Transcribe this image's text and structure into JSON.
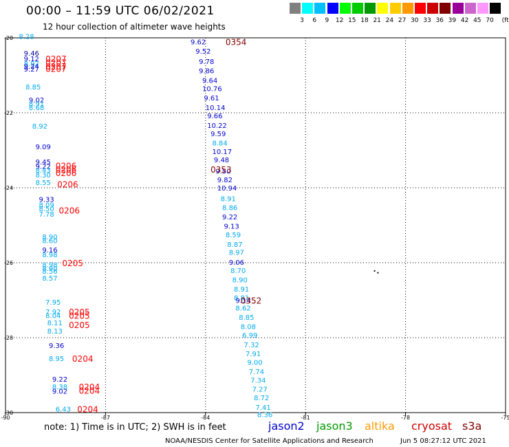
{
  "header": {
    "title": "00:00 – 11:59 UTC 06/02/2021",
    "subtitle": "12 hour collection of altimeter wave heights"
  },
  "colorbar": {
    "unit": "(ft)",
    "colors": [
      "#808080",
      "#00ffff",
      "#00bfff",
      "#0000ff",
      "#00ff00",
      "#00cc00",
      "#009900",
      "#ffff00",
      "#ffcc00",
      "#ff9900",
      "#ff0000",
      "#cc0000",
      "#800000",
      "#990099",
      "#cc66cc",
      "#ff99ff",
      "#000000"
    ],
    "labels": [
      "3",
      "6",
      "9",
      "12",
      "15",
      "18",
      "21",
      "24",
      "27",
      "30",
      "33",
      "36",
      "39",
      "42",
      "45",
      "70"
    ]
  },
  "footer": {
    "note": "note: 1) Time is in UTC; 2) SWH is in feet",
    "satellites": [
      {
        "name": "jason2",
        "color": "#0000cc"
      },
      {
        "name": "jason3",
        "color": "#009900"
      },
      {
        "name": "altika",
        "color": "#ff9900"
      },
      {
        "name": "cryosat",
        "color": "#cc0000"
      },
      {
        "name": "s3a",
        "color": "#800000"
      }
    ],
    "credit": "NOAA/NESDIS Center for Satellite Applications and Research",
    "timestamp": "Jun  5 08:27:12 UTC 2021"
  },
  "chart_data": {
    "type": "scatter",
    "title": "00:00 – 11:59 UTC 06/02/2021",
    "subtitle": "12 hour collection of altimeter wave heights",
    "xlabel": "",
    "ylabel": "",
    "xlim": [
      -90,
      -75
    ],
    "ylim": [
      -30,
      -20
    ],
    "xticks": [
      "-90",
      "-87",
      "-84",
      "-81",
      "-78",
      "-75"
    ],
    "yticks": [
      "-20",
      "-22",
      "-24",
      "-26",
      "-28",
      "-30"
    ],
    "grid": true,
    "swh_units": "ft",
    "tracks": [
      {
        "color": "#0000cc",
        "time_labels": [
          {
            "text": "0207",
            "lon": -88.8,
            "lat": -20.55,
            "color": "#ff0000"
          },
          {
            "text": "0207",
            "lon": -88.8,
            "lat": -20.65,
            "color": "#ff0000"
          },
          {
            "text": "0207",
            "lon": -88.8,
            "lat": -20.75,
            "color": "#ff0000"
          },
          {
            "text": "0207",
            "lon": -88.8,
            "lat": -20.82,
            "color": "#ff0000"
          },
          {
            "text": "0206",
            "lon": -88.5,
            "lat": -23.4,
            "color": "#ff0000"
          },
          {
            "text": "0206",
            "lon": -88.5,
            "lat": -23.5,
            "color": "#ff0000"
          },
          {
            "text": "0206",
            "lon": -88.5,
            "lat": -23.6,
            "color": "#ff0000"
          },
          {
            "text": "0206",
            "lon": -88.45,
            "lat": -23.9,
            "color": "#ff0000"
          },
          {
            "text": "0206",
            "lon": -88.4,
            "lat": -24.6,
            "color": "#ff0000"
          },
          {
            "text": "0205",
            "lon": -88.3,
            "lat": -26.0,
            "color": "#ff0000"
          },
          {
            "text": "0205",
            "lon": -88.1,
            "lat": -27.3,
            "color": "#ff0000"
          },
          {
            "text": "0205",
            "lon": -88.1,
            "lat": -27.4,
            "color": "#ff0000"
          },
          {
            "text": "0205",
            "lon": -88.1,
            "lat": -27.65,
            "color": "#ff0000"
          },
          {
            "text": "0204",
            "lon": -88.0,
            "lat": -28.55,
            "color": "#ff0000"
          },
          {
            "text": "0204",
            "lon": -87.8,
            "lat": -29.3,
            "color": "#ff0000"
          },
          {
            "text": "0204",
            "lon": -87.8,
            "lat": -29.4,
            "color": "#ff0000"
          },
          {
            "text": "0204",
            "lon": -87.85,
            "lat": -29.9,
            "color": "#ff0000"
          }
        ]
      },
      {
        "color": "#800000",
        "time_labels": [
          {
            "text": "0354",
            "lon": -83.4,
            "lat": -20.1,
            "color": "#800000"
          },
          {
            "text": "0353",
            "lon": -83.85,
            "lat": -23.5,
            "color": "#800000"
          },
          {
            "text": "0352",
            "lon": -82.95,
            "lat": -27.0,
            "color": "#800000"
          }
        ]
      }
    ],
    "points": [
      {
        "lon": -89.6,
        "lat": -19.95,
        "swh": "8.28",
        "color": "#00aaee"
      },
      {
        "lon": -89.45,
        "lat": -20.4,
        "swh": "9.46",
        "color": "#000099"
      },
      {
        "lon": -89.45,
        "lat": -20.55,
        "swh": "9.12",
        "color": "#0000cc"
      },
      {
        "lon": -89.45,
        "lat": -20.68,
        "swh": "8.92",
        "color": "#00aaee"
      },
      {
        "lon": -89.45,
        "lat": -20.75,
        "swh": "9.24",
        "color": "#0000cc"
      },
      {
        "lon": -89.45,
        "lat": -20.83,
        "swh": "9.27",
        "color": "#0000cc"
      },
      {
        "lon": -89.4,
        "lat": -21.3,
        "swh": "8.85",
        "color": "#00aaee"
      },
      {
        "lon": -89.3,
        "lat": -21.65,
        "swh": "9.02",
        "color": "#0000cc"
      },
      {
        "lon": -89.3,
        "lat": -21.75,
        "swh": "8.91",
        "color": "#00aaee"
      },
      {
        "lon": -89.3,
        "lat": -21.85,
        "swh": "8.68",
        "color": "#00aaee"
      },
      {
        "lon": -89.2,
        "lat": -22.35,
        "swh": "8.92",
        "color": "#00aaee"
      },
      {
        "lon": -89.1,
        "lat": -22.9,
        "swh": "9.09",
        "color": "#0000cc"
      },
      {
        "lon": -89.1,
        "lat": -23.3,
        "swh": "9.45",
        "color": "#0000cc"
      },
      {
        "lon": -89.1,
        "lat": -23.42,
        "swh": "9.22",
        "color": "#0000cc"
      },
      {
        "lon": -89.1,
        "lat": -23.52,
        "swh": "8.43",
        "color": "#00aaee"
      },
      {
        "lon": -89.1,
        "lat": -23.65,
        "swh": "8.30",
        "color": "#00aaee"
      },
      {
        "lon": -89.1,
        "lat": -23.85,
        "swh": "8.55",
        "color": "#00aaee"
      },
      {
        "lon": -89.0,
        "lat": -24.3,
        "swh": "9.33",
        "color": "#0000cc"
      },
      {
        "lon": -89.0,
        "lat": -24.45,
        "swh": "8.09",
        "color": "#00aaee"
      },
      {
        "lon": -89.0,
        "lat": -24.55,
        "swh": "8.50",
        "color": "#00aaee"
      },
      {
        "lon": -89.0,
        "lat": -24.7,
        "swh": "7.78",
        "color": "#00aaee"
      },
      {
        "lon": -88.9,
        "lat": -25.3,
        "swh": "8.90",
        "color": "#00aaee"
      },
      {
        "lon": -88.9,
        "lat": -25.4,
        "swh": "8.60",
        "color": "#00aaee"
      },
      {
        "lon": -88.9,
        "lat": -25.65,
        "swh": "9.16",
        "color": "#0000cc"
      },
      {
        "lon": -88.9,
        "lat": -25.78,
        "swh": "8.98",
        "color": "#00aaee"
      },
      {
        "lon": -88.9,
        "lat": -26.05,
        "swh": "8.98",
        "color": "#00aaee"
      },
      {
        "lon": -88.9,
        "lat": -26.15,
        "swh": "8.90",
        "color": "#00aaee"
      },
      {
        "lon": -88.9,
        "lat": -26.22,
        "swh": "8.56",
        "color": "#00aaee"
      },
      {
        "lon": -88.9,
        "lat": -26.4,
        "swh": "8.57",
        "color": "#00aaee"
      },
      {
        "lon": -88.8,
        "lat": -27.05,
        "swh": "7.95",
        "color": "#00aaee"
      },
      {
        "lon": -88.8,
        "lat": -27.3,
        "swh": "7.92",
        "color": "#00aaee"
      },
      {
        "lon": -88.8,
        "lat": -27.4,
        "swh": "8.04",
        "color": "#00aaee"
      },
      {
        "lon": -88.75,
        "lat": -27.6,
        "swh": "8.11",
        "color": "#00aaee"
      },
      {
        "lon": -88.75,
        "lat": -27.82,
        "swh": "8.13",
        "color": "#00aaee"
      },
      {
        "lon": -88.7,
        "lat": -28.2,
        "swh": "9.36",
        "color": "#0000cc"
      },
      {
        "lon": -88.7,
        "lat": -28.55,
        "swh": "8.95",
        "color": "#00aaee"
      },
      {
        "lon": -88.6,
        "lat": -29.1,
        "swh": "9.22",
        "color": "#0000cc"
      },
      {
        "lon": -88.6,
        "lat": -29.3,
        "swh": "8.38",
        "color": "#00aaee"
      },
      {
        "lon": -88.6,
        "lat": -29.42,
        "swh": "9.02",
        "color": "#0000cc"
      },
      {
        "lon": -88.5,
        "lat": -29.9,
        "swh": "6.43",
        "color": "#00aaee"
      },
      {
        "lon": -84.45,
        "lat": -20.1,
        "swh": "9.62",
        "color": "#0000cc"
      },
      {
        "lon": -84.3,
        "lat": -20.35,
        "swh": "9.52",
        "color": "#0000cc"
      },
      {
        "lon": -84.2,
        "lat": -20.62,
        "swh": "9.78",
        "color": "#0000cc"
      },
      {
        "lon": -84.2,
        "lat": -20.87,
        "swh": "9.86",
        "color": "#0000cc"
      },
      {
        "lon": -84.1,
        "lat": -21.13,
        "swh": "9.64",
        "color": "#0000cc"
      },
      {
        "lon": -84.1,
        "lat": -21.35,
        "swh": "10.76",
        "color": "#0000cc"
      },
      {
        "lon": -84.05,
        "lat": -21.6,
        "swh": "9.61",
        "color": "#0000cc"
      },
      {
        "lon": -84.0,
        "lat": -21.85,
        "swh": "10.14",
        "color": "#0000cc"
      },
      {
        "lon": -83.95,
        "lat": -22.07,
        "swh": "9.66",
        "color": "#0000cc"
      },
      {
        "lon": -83.95,
        "lat": -22.33,
        "swh": "10.22",
        "color": "#0000cc"
      },
      {
        "lon": -83.85,
        "lat": -22.55,
        "swh": "9.59",
        "color": "#0000cc"
      },
      {
        "lon": -83.8,
        "lat": -22.8,
        "swh": "8.84",
        "color": "#00aaee"
      },
      {
        "lon": -83.8,
        "lat": -23.03,
        "swh": "10.17",
        "color": "#0000cc"
      },
      {
        "lon": -83.75,
        "lat": -23.25,
        "swh": "9.48",
        "color": "#0000cc"
      },
      {
        "lon": -83.7,
        "lat": -23.55,
        "swh": "9.50",
        "color": "#0000cc"
      },
      {
        "lon": -83.65,
        "lat": -23.78,
        "swh": "9.82",
        "color": "#0000cc"
      },
      {
        "lon": -83.65,
        "lat": -24.0,
        "swh": "10.94",
        "color": "#0000cc"
      },
      {
        "lon": -83.55,
        "lat": -24.28,
        "swh": "8.91",
        "color": "#00aaee"
      },
      {
        "lon": -83.5,
        "lat": -24.52,
        "swh": "8.86",
        "color": "#00aaee"
      },
      {
        "lon": -83.5,
        "lat": -24.77,
        "swh": "9.22",
        "color": "#0000cc"
      },
      {
        "lon": -83.45,
        "lat": -25.02,
        "swh": "9.13",
        "color": "#0000cc"
      },
      {
        "lon": -83.4,
        "lat": -25.25,
        "swh": "8.59",
        "color": "#00aaee"
      },
      {
        "lon": -83.35,
        "lat": -25.5,
        "swh": "8.87",
        "color": "#00aaee"
      },
      {
        "lon": -83.3,
        "lat": -25.72,
        "swh": "8.97",
        "color": "#00aaee"
      },
      {
        "lon": -83.3,
        "lat": -25.98,
        "swh": "9.06",
        "color": "#0000cc"
      },
      {
        "lon": -83.25,
        "lat": -26.2,
        "swh": "8.70",
        "color": "#00aaee"
      },
      {
        "lon": -83.2,
        "lat": -26.45,
        "swh": "8.90",
        "color": "#00aaee"
      },
      {
        "lon": -83.15,
        "lat": -26.7,
        "swh": "8.91",
        "color": "#00aaee"
      },
      {
        "lon": -83.15,
        "lat": -26.93,
        "swh": "8.81",
        "color": "#00aaee"
      },
      {
        "lon": -83.1,
        "lat": -27.0,
        "swh": "9.14",
        "color": "#0000cc"
      },
      {
        "lon": -83.1,
        "lat": -27.2,
        "swh": "8.62",
        "color": "#00aaee"
      },
      {
        "lon": -83.0,
        "lat": -27.45,
        "swh": "8.85",
        "color": "#00aaee"
      },
      {
        "lon": -82.95,
        "lat": -27.7,
        "swh": "8.08",
        "color": "#00aaee"
      },
      {
        "lon": -82.9,
        "lat": -27.93,
        "swh": "6.99",
        "color": "#00aaee"
      },
      {
        "lon": -82.85,
        "lat": -28.18,
        "swh": "7.32",
        "color": "#00aaee"
      },
      {
        "lon": -82.8,
        "lat": -28.42,
        "swh": "7.91",
        "color": "#00aaee"
      },
      {
        "lon": -82.75,
        "lat": -28.65,
        "swh": "9.00",
        "color": "#00aaee"
      },
      {
        "lon": -82.7,
        "lat": -28.9,
        "swh": "7.74",
        "color": "#00aaee"
      },
      {
        "lon": -82.65,
        "lat": -29.13,
        "swh": "7.34",
        "color": "#00aaee"
      },
      {
        "lon": -82.6,
        "lat": -29.37,
        "swh": "7.27",
        "color": "#00aaee"
      },
      {
        "lon": -82.55,
        "lat": -29.6,
        "swh": "8.72",
        "color": "#00aaee"
      },
      {
        "lon": -82.5,
        "lat": -29.85,
        "swh": "7.41",
        "color": "#00aaee"
      },
      {
        "lon": -82.45,
        "lat": -30.05,
        "swh": "8.36",
        "color": "#00aaee"
      }
    ],
    "markers": [
      {
        "lon": -78.95,
        "lat": -26.2,
        "color": "#000000"
      },
      {
        "lon": -78.85,
        "lat": -26.25,
        "color": "#000000"
      }
    ]
  }
}
